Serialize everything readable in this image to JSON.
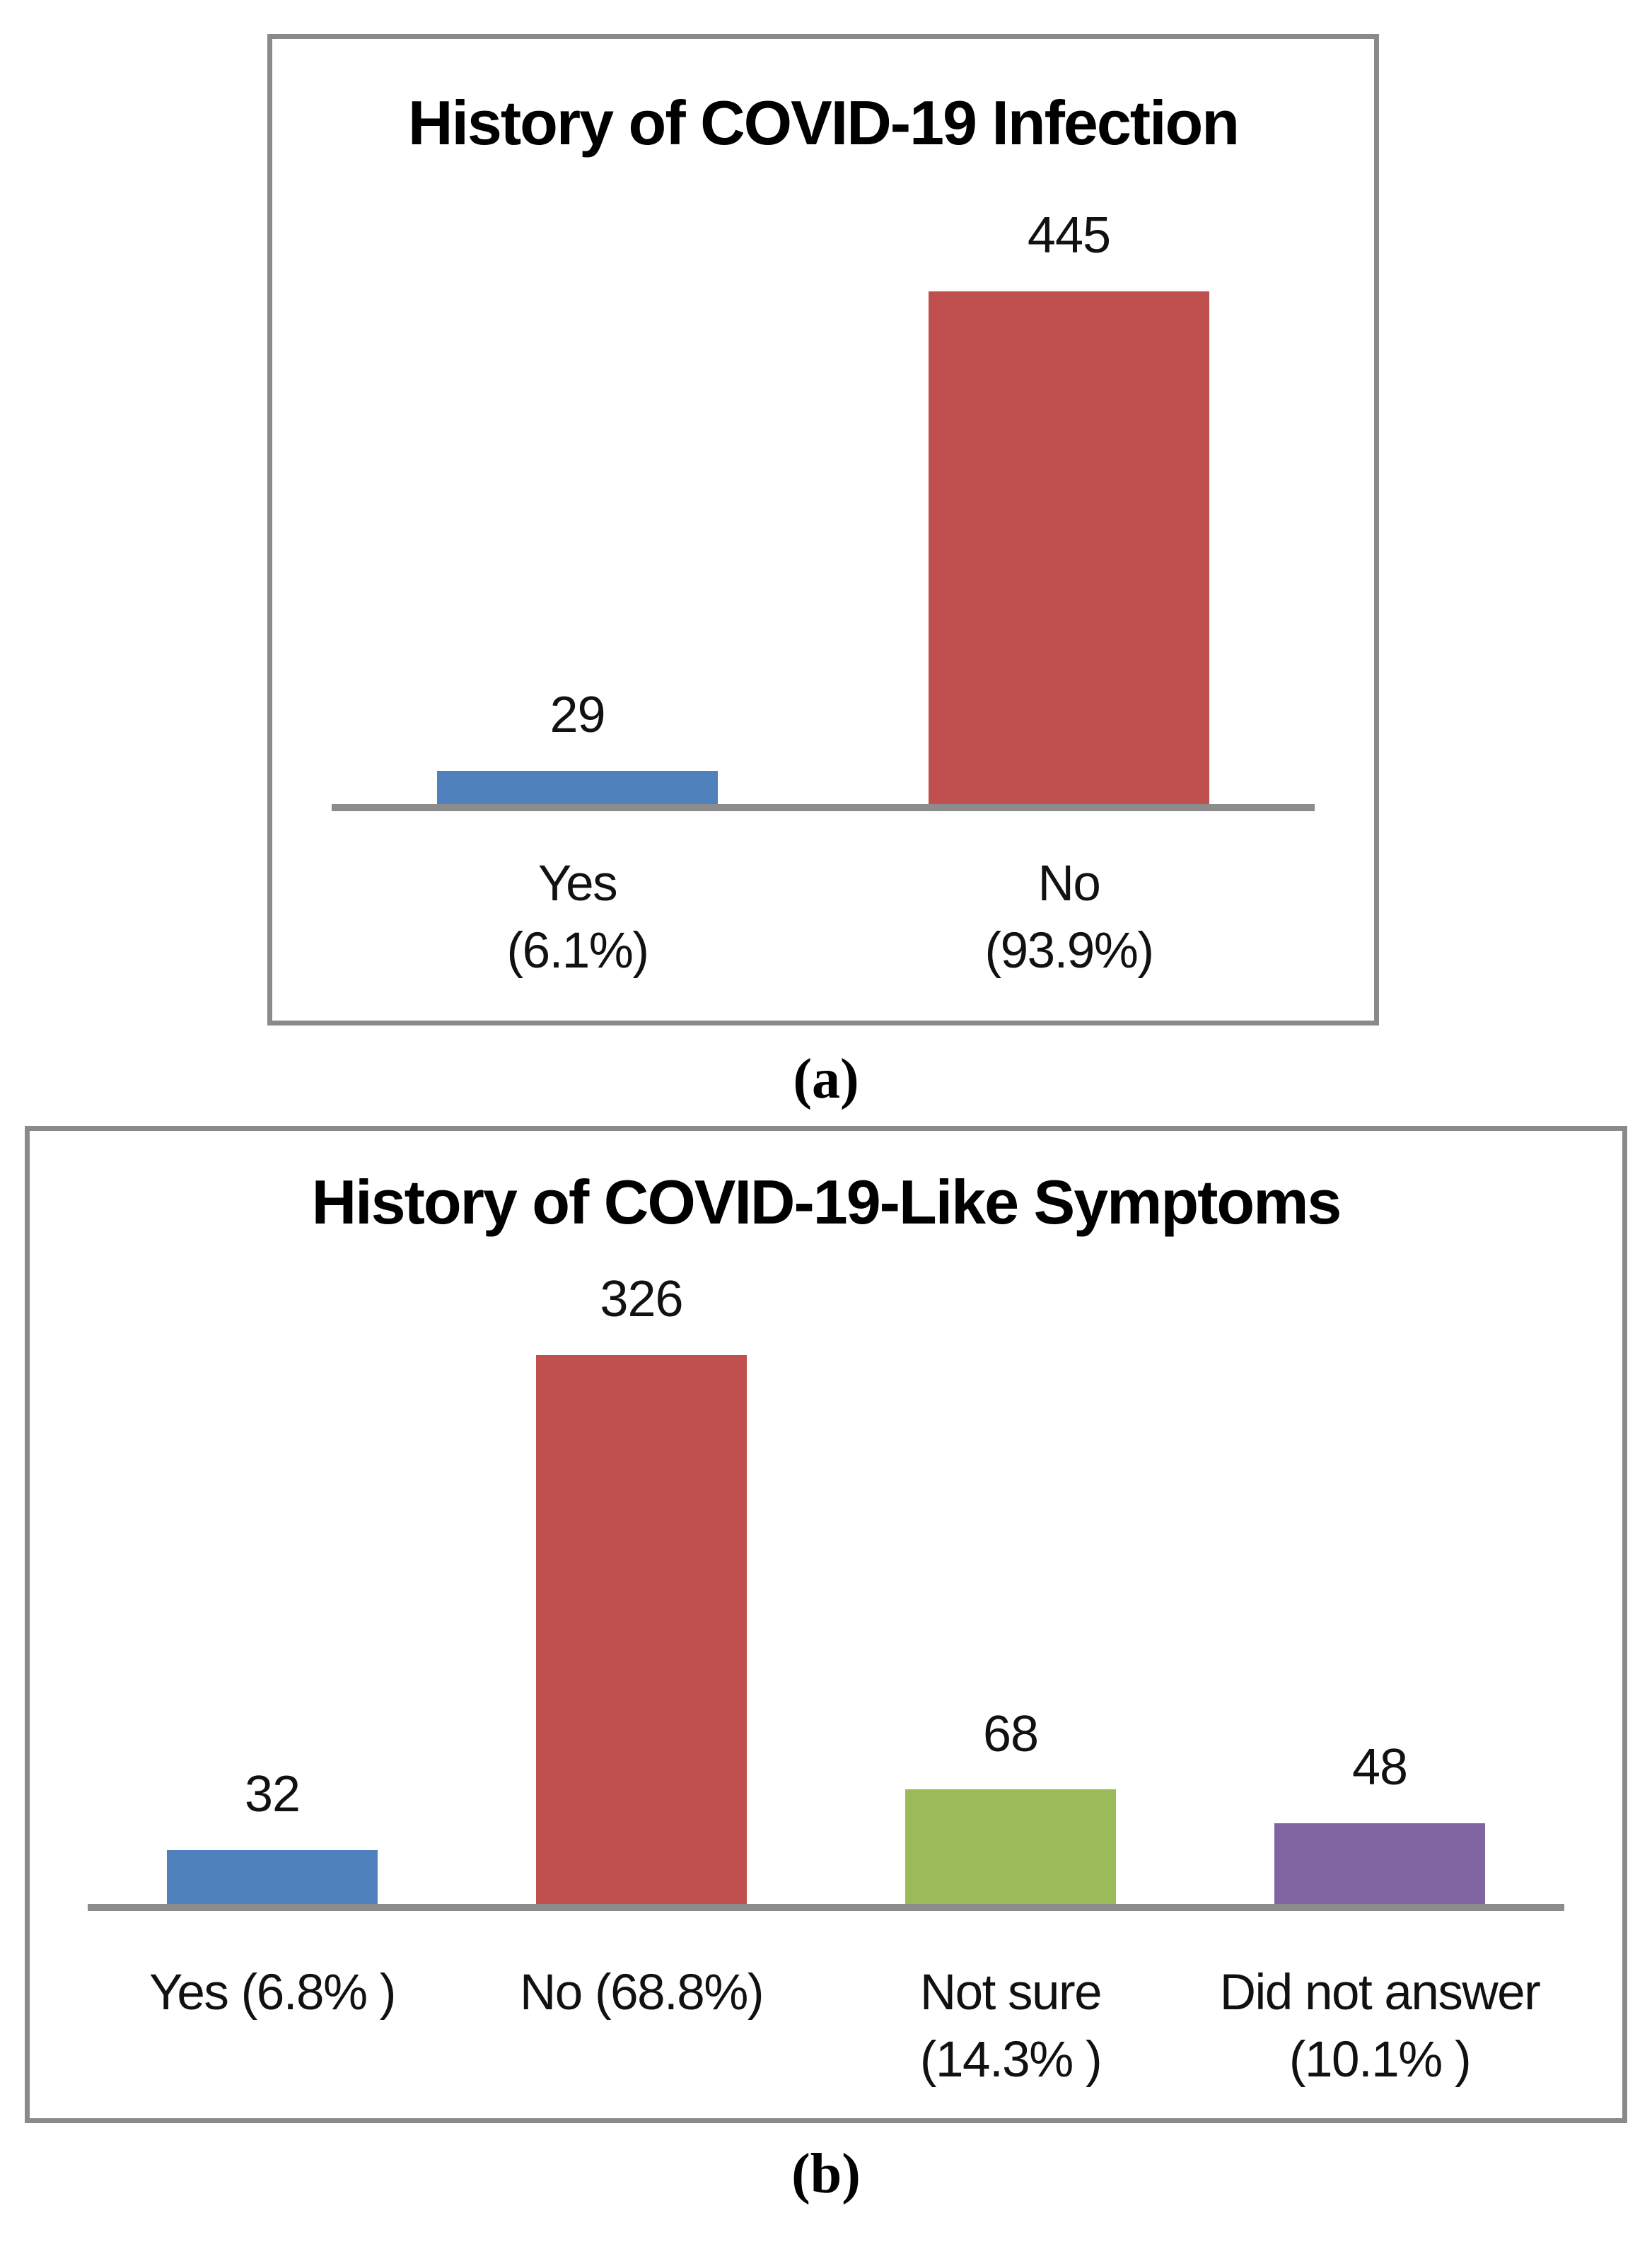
{
  "page": {
    "background": "#ffffff",
    "caption_a": "(a)",
    "caption_b": "(b)"
  },
  "colors": {
    "blue": "#4F81BD",
    "red": "#C0504D",
    "green": "#9BBB59",
    "purple": "#8064A2",
    "axis_gray": "#8C8C8C",
    "border_gray": "#8A8A8A"
  },
  "chart_data": [
    {
      "id": "a",
      "type": "bar",
      "title": "History of COVID-19 Infection",
      "categories": [
        "Yes (6.1%)",
        "No (93.9%)"
      ],
      "category_label_lines": [
        [
          "Yes",
          "(6.1%)"
        ],
        [
          "No",
          "(93.9%)"
        ]
      ],
      "values": [
        29,
        445
      ],
      "value_labels": [
        "29",
        "445"
      ],
      "percentages": [
        "6.1%",
        "93.9%"
      ],
      "bar_colors": [
        "#4F81BD",
        "#C0504D"
      ],
      "ylim": [
        0,
        460
      ],
      "grid": false,
      "legend": false,
      "caption": "(a)"
    },
    {
      "id": "b",
      "type": "bar",
      "title": "History of COVID-19-Like Symptoms",
      "categories": [
        "Yes (6.8% )",
        "No (68.8%)",
        "Not sure (14.3% )",
        "Did not answer (10.1% )"
      ],
      "category_label_lines": [
        [
          "Yes (6.8% )"
        ],
        [
          "No (68.8%)"
        ],
        [
          "Not sure",
          "(14.3% )"
        ],
        [
          "Did not answer",
          "(10.1% )"
        ]
      ],
      "values": [
        32,
        326,
        68,
        48
      ],
      "value_labels": [
        "32",
        "326",
        "68",
        "48"
      ],
      "percentages": [
        "6.8%",
        "68.8%",
        "14.3%",
        "10.1%"
      ],
      "bar_colors": [
        "#4F81BD",
        "#C0504D",
        "#9BBB59",
        "#8064A2"
      ],
      "ylim": [
        0,
        340
      ],
      "grid": false,
      "legend": false,
      "caption": "(b)"
    }
  ]
}
